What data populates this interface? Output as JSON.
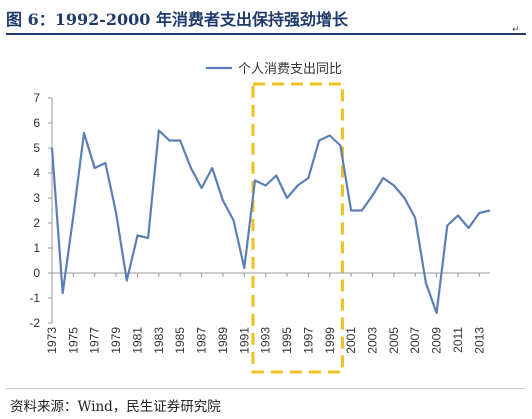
{
  "figure": {
    "title": "图 6：1992-2000 年消费者支出保持强劲增长"
  },
  "source": "资料来源：Wind，民生证券研究院",
  "chart_data": {
    "type": "line",
    "title": "",
    "xlabel": "",
    "ylabel": "",
    "ylim": [
      -2,
      7
    ],
    "yticks": [
      -2,
      -1,
      0,
      1,
      2,
      3,
      4,
      5,
      6,
      7
    ],
    "xlim": [
      1973,
      2014
    ],
    "xticks": [
      1973,
      1975,
      1977,
      1979,
      1981,
      1983,
      1985,
      1987,
      1989,
      1991,
      1993,
      1995,
      1997,
      1999,
      2001,
      2003,
      2005,
      2007,
      2009,
      2011,
      2013
    ],
    "grid": false,
    "legend_position": "top-center",
    "line_color": "#5b7fb4",
    "highlight_color": "#f0c020",
    "highlight_range": [
      1992,
      2000
    ],
    "series": [
      {
        "name": "个人消费支出同比",
        "x": [
          1973,
          1974,
          1975,
          1976,
          1977,
          1978,
          1979,
          1980,
          1981,
          1982,
          1983,
          1984,
          1985,
          1986,
          1987,
          1988,
          1989,
          1990,
          1991,
          1992,
          1993,
          1994,
          1995,
          1996,
          1997,
          1998,
          1999,
          2000,
          2001,
          2002,
          2003,
          2004,
          2005,
          2006,
          2007,
          2008,
          2009,
          2010,
          2011,
          2012,
          2013,
          2014
        ],
        "values": [
          5.0,
          -0.8,
          2.3,
          5.6,
          4.2,
          4.4,
          2.4,
          -0.3,
          1.5,
          1.4,
          5.7,
          5.3,
          5.3,
          4.2,
          3.4,
          4.2,
          2.9,
          2.1,
          0.2,
          3.7,
          3.5,
          3.9,
          3.0,
          3.5,
          3.8,
          5.3,
          5.5,
          5.1,
          2.5,
          2.5,
          3.1,
          3.8,
          3.5,
          3.0,
          2.2,
          -0.4,
          -1.6,
          1.9,
          2.3,
          1.8,
          2.4,
          2.5
        ]
      }
    ]
  }
}
